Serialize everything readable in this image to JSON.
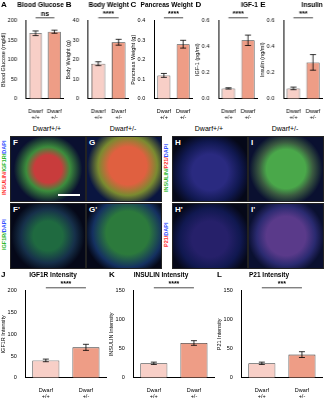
{
  "chart_data": [
    {
      "type": "bar",
      "panel": "A",
      "title": "Blood Glucose",
      "y_label": "Blood Glucose (mg/dl)",
      "categories": [
        "Dwarf +/+",
        "Dwarf +/-"
      ],
      "values": [
        168,
        172
      ],
      "errors": [
        6,
        4
      ],
      "colors": [
        "#f8cfc7",
        "#ee9d86"
      ],
      "ylim": [
        0,
        200
      ],
      "yticks": [
        0,
        50,
        100,
        150,
        200
      ],
      "grid": false,
      "annotations": [
        "ns"
      ]
    },
    {
      "type": "bar",
      "panel": "B",
      "title": "Body Weight",
      "y_label": "Body Weight (g)",
      "categories": [
        "Dwarf +/+",
        "Dwarf +/-"
      ],
      "values": [
        18,
        29
      ],
      "errors": [
        1,
        1.5
      ],
      "colors": [
        "#f8cfc7",
        "#ee9d86"
      ],
      "ylim": [
        0,
        40
      ],
      "yticks": [
        0,
        10,
        20,
        30,
        40
      ],
      "grid": false,
      "annotations": [
        "****"
      ]
    },
    {
      "type": "bar",
      "panel": "C",
      "title": "Pancreas Weight",
      "y_label": "Pancreas Weight (g)",
      "categories": [
        "Dwarf +/+",
        "Dwarf +/-"
      ],
      "values": [
        0.12,
        0.28
      ],
      "errors": [
        0.01,
        0.02
      ],
      "colors": [
        "#f8cfc7",
        "#ee9d86"
      ],
      "ylim": [
        0,
        0.4
      ],
      "yticks": [
        {
          "value": 0,
          "label": "0.0"
        },
        0.1,
        0.2,
        0.3,
        0.4
      ],
      "grid": false,
      "annotations": [
        "****"
      ]
    },
    {
      "type": "bar",
      "panel": "D",
      "title": "IGF-1",
      "y_label": "IGF-1 (pg/ml)",
      "categories": [
        "Dwarf +/+",
        "Dwarf +/-"
      ],
      "values": [
        0.08,
        0.45
      ],
      "errors": [
        0.005,
        0.04
      ],
      "colors": [
        "#f8cfc7",
        "#ee9d86"
      ],
      "ylim": [
        0,
        0.6
      ],
      "yticks": [
        {
          "value": 0,
          "label": "0.0"
        },
        0.2,
        0.4,
        0.6
      ],
      "grid": false,
      "annotations": [
        "****"
      ]
    },
    {
      "type": "bar",
      "panel": "E",
      "title": "Insulin",
      "y_label": "Insulin (ng/ml)",
      "categories": [
        "Dwarf +/+",
        "Dwarf +/-"
      ],
      "values": [
        0.08,
        0.28
      ],
      "errors": [
        0.01,
        0.06
      ],
      "colors": [
        "#f8cfc7",
        "#ee9d86"
      ],
      "ylim": [
        0,
        0.6
      ],
      "yticks": [
        {
          "value": 0,
          "label": "0.0"
        },
        0.2,
        0.4,
        0.6
      ],
      "grid": false,
      "annotations": [
        "***"
      ]
    },
    {
      "type": "bar",
      "panel": "J",
      "title": "IGF1R Intensity",
      "y_label": "IGF1R Intensity",
      "categories": [
        "Dwarf +/+",
        "Dwarf +/-"
      ],
      "values": [
        40,
        70
      ],
      "errors": [
        3,
        7
      ],
      "colors": [
        "#f8cfc7",
        "#ee9d86"
      ],
      "ylim": [
        0,
        200
      ],
      "yticks": [
        0,
        50,
        100,
        150,
        200
      ],
      "grid": false,
      "annotations": [
        "****"
      ]
    },
    {
      "type": "bar",
      "panel": "K",
      "title": "INSULIN Intensity",
      "y_label": "INSULIN Intensity",
      "categories": [
        "Dwarf +/+",
        "Dwarf +/-"
      ],
      "values": [
        25,
        60
      ],
      "errors": [
        2,
        4
      ],
      "colors": [
        "#f8cfc7",
        "#ee9d86"
      ],
      "ylim": [
        0,
        150
      ],
      "yticks": [
        0,
        50,
        100,
        150
      ],
      "grid": false,
      "annotations": [
        "****"
      ]
    },
    {
      "type": "bar",
      "panel": "L",
      "title": "P21 Intensity",
      "y_label": "P21 Intensity",
      "categories": [
        "Dwarf +/+",
        "Dwarf +/-"
      ],
      "values": [
        25,
        40
      ],
      "errors": [
        2,
        5
      ],
      "colors": [
        "#f8cfc7",
        "#ee9d86"
      ],
      "ylim": [
        0,
        150
      ],
      "yticks": [
        0,
        50,
        100,
        150
      ],
      "grid": false,
      "annotations": [
        "***"
      ]
    }
  ],
  "images": {
    "headers": [
      "Dwarf+/+",
      "Dwarf+/-",
      "Dwarf+/+",
      "Dwarf+/-"
    ],
    "panels": [
      {
        "label": "F",
        "stain": [
          {
            "text": "INSULIN/",
            "color": "#ff3030"
          },
          {
            "text": "IGF1R/",
            "color": "#2eb82e"
          },
          {
            "text": "DAPI",
            "color": "#3050ff"
          }
        ]
      },
      {
        "label": "G"
      },
      {
        "label": "F'",
        "stain": [
          {
            "text": "IGF1R/",
            "color": "#2eb82e"
          },
          {
            "text": "DAPI",
            "color": "#3050ff"
          }
        ]
      },
      {
        "label": "G'"
      },
      {
        "label": "H",
        "stain": [
          {
            "text": "INSULIN/",
            "color": "#2eb82e"
          },
          {
            "text": "P21/",
            "color": "#ff3030"
          },
          {
            "text": "DAPI",
            "color": "#3050ff"
          }
        ]
      },
      {
        "label": "I"
      },
      {
        "label": "H'",
        "stain": [
          {
            "text": "P21/",
            "color": "#ff3030"
          },
          {
            "text": "DAPI",
            "color": "#3050ff"
          }
        ]
      },
      {
        "label": "I'"
      }
    ]
  }
}
